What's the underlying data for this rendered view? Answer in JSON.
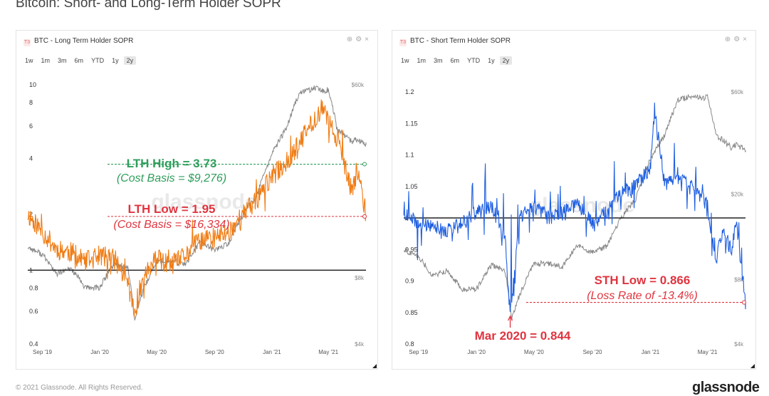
{
  "page": {
    "title": "Bitcoin: Short- and Long-Term Holder SOPR",
    "copyright": "© 2021 Glassnode. All Rights Reserved.",
    "logo": "glassnode"
  },
  "panels": [
    {
      "id": "lth",
      "badge": "T3",
      "title": "BTC - Long Term Holder SOPR",
      "timeframes": [
        "1w",
        "1m",
        "3m",
        "6m",
        "YTD",
        "1y",
        "2y"
      ],
      "active_timeframe": "2y",
      "watermark": "glassnode"
    },
    {
      "id": "sth",
      "badge": "T3",
      "title": "BTC - Short Term Holder SOPR",
      "timeframes": [
        "1w",
        "1m",
        "3m",
        "6m",
        "YTD",
        "1y",
        "2y"
      ],
      "active_timeframe": "2y",
      "watermark": "glassnode"
    }
  ],
  "chart_data": [
    {
      "type": "line",
      "title": "BTC - Long Term Holder SOPR",
      "scale": "log",
      "x_range": [
        "2019-08-01",
        "2021-07-20"
      ],
      "x_ticks": [
        "Sep '19",
        "Jan '20",
        "May '20",
        "Sep '20",
        "Jan '21",
        "May '21"
      ],
      "y_ticks": [
        0.4,
        0.6,
        0.8,
        1,
        2,
        4,
        6,
        8,
        10
      ],
      "y_right_ticks": [
        "$60k",
        "$8k",
        "$4k"
      ],
      "series": [
        {
          "name": "",
          "color": "#f07c14",
          "x": [
            "2019-08-01",
            "2019-09-01",
            "2019-10-01",
            "2019-11-01",
            "2019-12-01",
            "2020-01-01",
            "2020-02-01",
            "2020-03-01",
            "2020-03-15",
            "2020-04-01",
            "2020-05-01",
            "2020-06-01",
            "2020-07-01",
            "2020-08-01",
            "2020-09-01",
            "2020-10-01",
            "2020-11-01",
            "2020-12-01",
            "2021-01-01",
            "2021-02-01",
            "2021-03-01",
            "2021-04-01",
            "2021-04-20",
            "2021-05-01",
            "2021-05-20",
            "2021-06-01",
            "2021-06-20",
            "2021-07-01",
            "2021-07-20"
          ],
          "values": [
            2.0,
            1.6,
            1.3,
            1.25,
            1.1,
            1.2,
            1.15,
            0.85,
            0.56,
            0.9,
            1.15,
            1.05,
            1.2,
            1.45,
            1.5,
            1.6,
            2.0,
            2.4,
            3.2,
            3.8,
            4.8,
            6.5,
            7.5,
            6.2,
            5.2,
            3.8,
            2.6,
            3.5,
            1.95
          ]
        },
        {
          "name": "",
          "color": "#888888",
          "axis": "right",
          "x": [
            "2019-08-01",
            "2019-09-01",
            "2019-10-01",
            "2019-11-01",
            "2019-12-01",
            "2020-01-01",
            "2020-02-01",
            "2020-03-01",
            "2020-03-15",
            "2020-04-01",
            "2020-05-01",
            "2020-06-01",
            "2020-07-01",
            "2020-08-01",
            "2020-09-01",
            "2020-10-01",
            "2020-11-01",
            "2020-12-01",
            "2021-01-01",
            "2021-02-01",
            "2021-03-01",
            "2021-04-01",
            "2021-04-20",
            "2021-05-01",
            "2021-05-20",
            "2021-06-01",
            "2021-06-20",
            "2021-07-01",
            "2021-07-20"
          ],
          "values": [
            11000,
            10200,
            8300,
            8800,
            7200,
            7200,
            9300,
            8800,
            5200,
            6800,
            9500,
            9500,
            9200,
            11500,
            10700,
            11400,
            15500,
            19000,
            29000,
            38000,
            55000,
            58000,
            56000,
            57000,
            37000,
            36000,
            33000,
            34000,
            32000
          ]
        }
      ],
      "reference_lines": [
        {
          "y": 1,
          "style": "solid",
          "color": "#222222"
        },
        {
          "y": 3.73,
          "style": "dashed",
          "color": "#2e9e5b"
        },
        {
          "y": 1.95,
          "style": "dashed",
          "color": "#e0343f"
        }
      ],
      "annotations": [
        {
          "text": "LTH High = 3.73",
          "color": "#2e9e5b"
        },
        {
          "text": "(Cost Basis = $9,276)",
          "color": "#2e9e5b"
        },
        {
          "text": "LTH Low = 1.95",
          "color": "#e0343f"
        },
        {
          "text": "(Cost Basis = $16,334)",
          "color": "#e0343f"
        }
      ]
    },
    {
      "type": "line",
      "title": "BTC - Short Term Holder SOPR",
      "x_range": [
        "2019-08-01",
        "2021-07-20"
      ],
      "x_ticks": [
        "Sep '19",
        "Jan '20",
        "May '20",
        "Sep '20",
        "Jan '21",
        "May '21"
      ],
      "y_ticks": [
        0.8,
        0.85,
        0.9,
        0.95,
        1,
        1.05,
        1.1,
        1.15,
        1.2
      ],
      "y_right_ticks": [
        "$60k",
        "$20k",
        "$8k",
        "$4k"
      ],
      "series": [
        {
          "name": "",
          "color": "#1f5fe0",
          "x": [
            "2019-08-01",
            "2019-09-01",
            "2019-10-01",
            "2019-11-01",
            "2019-12-01",
            "2020-01-01",
            "2020-02-01",
            "2020-03-01",
            "2020-03-12",
            "2020-04-01",
            "2020-05-01",
            "2020-06-01",
            "2020-07-01",
            "2020-08-01",
            "2020-09-01",
            "2020-10-01",
            "2020-11-01",
            "2020-12-01",
            "2021-01-01",
            "2021-01-10",
            "2021-02-01",
            "2021-03-01",
            "2021-04-01",
            "2021-05-01",
            "2021-05-19",
            "2021-06-01",
            "2021-06-20",
            "2021-07-01",
            "2021-07-20"
          ],
          "values": [
            1.01,
            0.99,
            0.99,
            0.98,
            0.99,
            1.01,
            1.02,
            0.97,
            0.844,
            1.0,
            1.02,
            1.0,
            1.01,
            1.02,
            0.99,
            1.01,
            1.04,
            1.05,
            1.08,
            1.17,
            1.05,
            1.07,
            1.05,
            1.02,
            0.93,
            0.98,
            0.95,
            0.99,
            0.866
          ]
        },
        {
          "name": "",
          "color": "#888888",
          "axis": "right",
          "x": [
            "2019-08-01",
            "2019-09-01",
            "2019-10-01",
            "2019-11-01",
            "2019-12-01",
            "2020-01-01",
            "2020-02-01",
            "2020-03-01",
            "2020-03-15",
            "2020-04-01",
            "2020-05-01",
            "2020-06-01",
            "2020-07-01",
            "2020-08-01",
            "2020-09-01",
            "2020-10-01",
            "2020-11-01",
            "2020-12-01",
            "2021-01-01",
            "2021-02-01",
            "2021-03-01",
            "2021-04-01",
            "2021-04-20",
            "2021-05-01",
            "2021-05-20",
            "2021-06-01",
            "2021-06-20",
            "2021-07-01",
            "2021-07-20"
          ],
          "values": [
            11000,
            10200,
            8300,
            8800,
            7200,
            7200,
            9300,
            8800,
            5200,
            6800,
            9500,
            9500,
            9200,
            11500,
            10700,
            11400,
            15500,
            19000,
            29000,
            38000,
            55000,
            58000,
            56000,
            57000,
            37000,
            36000,
            33000,
            34000,
            32000
          ]
        }
      ],
      "reference_lines": [
        {
          "y": 1,
          "style": "solid",
          "color": "#222222"
        },
        {
          "y": 0.866,
          "style": "dashed",
          "color": "#e0343f"
        }
      ],
      "annotations": [
        {
          "text": "STH Low = 0.866",
          "color": "#e0343f"
        },
        {
          "text": "(Loss Rate of -13.4%)",
          "color": "#e0343f"
        },
        {
          "text": "Mar 2020 = 0.844",
          "color": "#e0343f"
        }
      ]
    }
  ]
}
